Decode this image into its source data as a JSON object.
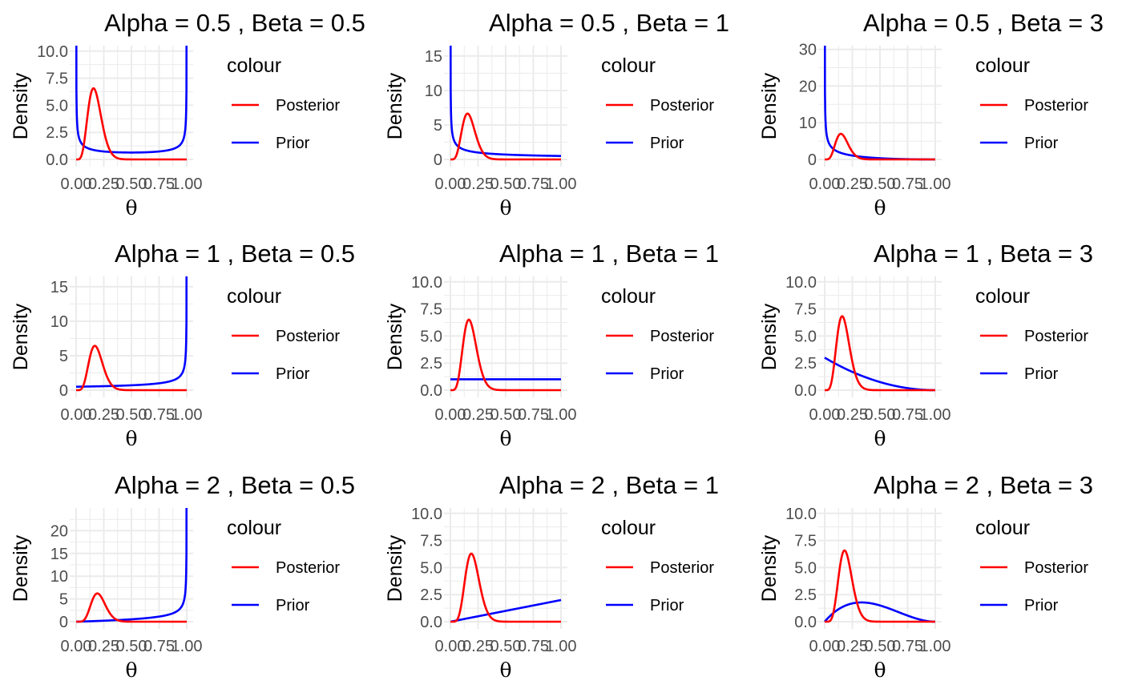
{
  "colors": {
    "posterior": "#FF0000",
    "prior": "#0000FF",
    "grid": "#EBEBEB"
  },
  "chart_data": [
    {
      "type": "line",
      "title": "Alpha = 0.5 , Beta = 0.5",
      "alpha": 0.5,
      "beta": 0.5,
      "xlabel": "θ",
      "ylabel": "Density",
      "xlim": [
        0,
        1
      ],
      "ylim": [
        0,
        10.5
      ],
      "yticks": [
        0,
        2.5,
        5,
        7.5,
        10
      ],
      "ytick_labels": [
        "0.0",
        "2.5",
        "5.0",
        "7.5",
        "10.0"
      ],
      "xticks": [
        0,
        0.25,
        0.5,
        0.75,
        1
      ],
      "xtick_labels": [
        "0.00",
        "0.25",
        "0.50",
        "0.75",
        "1.00"
      ],
      "legend": {
        "title": "colour",
        "position": "right",
        "entries": [
          "Posterior",
          "Prior"
        ]
      },
      "series": [
        {
          "name": "Posterior",
          "color": "#FF0000"
        },
        {
          "name": "Prior",
          "color": "#0000FF"
        }
      ]
    },
    {
      "type": "line",
      "title": "Alpha = 0.5 , Beta = 1",
      "alpha": 0.5,
      "beta": 1,
      "xlabel": "θ",
      "ylabel": "Density",
      "xlim": [
        0,
        1
      ],
      "ylim": [
        0,
        16.5
      ],
      "yticks": [
        0,
        5,
        10,
        15
      ],
      "ytick_labels": [
        "0",
        "5",
        "10",
        "15"
      ],
      "xticks": [
        0,
        0.25,
        0.5,
        0.75,
        1
      ],
      "xtick_labels": [
        "0.00",
        "0.25",
        "0.50",
        "0.75",
        "1.00"
      ],
      "legend": {
        "title": "colour",
        "position": "right",
        "entries": [
          "Posterior",
          "Prior"
        ]
      },
      "series": [
        {
          "name": "Posterior",
          "color": "#FF0000"
        },
        {
          "name": "Prior",
          "color": "#0000FF"
        }
      ]
    },
    {
      "type": "line",
      "title": "Alpha = 0.5 , Beta = 3",
      "alpha": 0.5,
      "beta": 3,
      "xlabel": "θ",
      "ylabel": "Density",
      "xlim": [
        0,
        1
      ],
      "ylim": [
        0,
        31
      ],
      "yticks": [
        0,
        10,
        20,
        30
      ],
      "ytick_labels": [
        "0",
        "10",
        "20",
        "30"
      ],
      "xticks": [
        0,
        0.25,
        0.5,
        0.75,
        1
      ],
      "xtick_labels": [
        "0.00",
        "0.25",
        "0.50",
        "0.75",
        "1.00"
      ],
      "legend": {
        "title": "colour",
        "position": "right",
        "entries": [
          "Posterior",
          "Prior"
        ]
      },
      "series": [
        {
          "name": "Posterior",
          "color": "#FF0000"
        },
        {
          "name": "Prior",
          "color": "#0000FF"
        }
      ]
    },
    {
      "type": "line",
      "title": "Alpha = 1 , Beta = 0.5",
      "alpha": 1,
      "beta": 0.5,
      "xlabel": "θ",
      "ylabel": "Density",
      "xlim": [
        0,
        1
      ],
      "ylim": [
        0,
        16.5
      ],
      "yticks": [
        0,
        5,
        10,
        15
      ],
      "ytick_labels": [
        "0",
        "5",
        "10",
        "15"
      ],
      "xticks": [
        0,
        0.25,
        0.5,
        0.75,
        1
      ],
      "xtick_labels": [
        "0.00",
        "0.25",
        "0.50",
        "0.75",
        "1.00"
      ],
      "legend": {
        "title": "colour",
        "position": "right",
        "entries": [
          "Posterior",
          "Prior"
        ]
      },
      "series": [
        {
          "name": "Posterior",
          "color": "#FF0000"
        },
        {
          "name": "Prior",
          "color": "#0000FF"
        }
      ]
    },
    {
      "type": "line",
      "title": "Alpha = 1 , Beta = 1",
      "alpha": 1,
      "beta": 1,
      "xlabel": "θ",
      "ylabel": "Density",
      "xlim": [
        0,
        1
      ],
      "ylim": [
        0,
        10.5
      ],
      "yticks": [
        0,
        2.5,
        5,
        7.5,
        10
      ],
      "ytick_labels": [
        "0.0",
        "2.5",
        "5.0",
        "7.5",
        "10.0"
      ],
      "xticks": [
        0,
        0.25,
        0.5,
        0.75,
        1
      ],
      "xtick_labels": [
        "0.00",
        "0.25",
        "0.50",
        "0.75",
        "1.00"
      ],
      "legend": {
        "title": "colour",
        "position": "right",
        "entries": [
          "Posterior",
          "Prior"
        ]
      },
      "series": [
        {
          "name": "Posterior",
          "color": "#FF0000"
        },
        {
          "name": "Prior",
          "color": "#0000FF"
        }
      ]
    },
    {
      "type": "line",
      "title": "Alpha = 1 , Beta = 3",
      "alpha": 1,
      "beta": 3,
      "xlabel": "θ",
      "ylabel": "Density",
      "xlim": [
        0,
        1
      ],
      "ylim": [
        0,
        10.5
      ],
      "yticks": [
        0,
        2.5,
        5,
        7.5,
        10
      ],
      "ytick_labels": [
        "0.0",
        "2.5",
        "5.0",
        "7.5",
        "10.0"
      ],
      "xticks": [
        0,
        0.25,
        0.5,
        0.75,
        1
      ],
      "xtick_labels": [
        "0.00",
        "0.25",
        "0.50",
        "0.75",
        "1.00"
      ],
      "legend": {
        "title": "colour",
        "position": "right",
        "entries": [
          "Posterior",
          "Prior"
        ]
      },
      "series": [
        {
          "name": "Posterior",
          "color": "#FF0000"
        },
        {
          "name": "Prior",
          "color": "#0000FF"
        }
      ]
    },
    {
      "type": "line",
      "title": "Alpha = 2 , Beta = 0.5",
      "alpha": 2,
      "beta": 0.5,
      "xlabel": "θ",
      "ylabel": "Density",
      "xlim": [
        0,
        1
      ],
      "ylim": [
        0,
        25
      ],
      "yticks": [
        0,
        5,
        10,
        15,
        20
      ],
      "ytick_labels": [
        "0",
        "5",
        "10",
        "15",
        "20"
      ],
      "xticks": [
        0,
        0.25,
        0.5,
        0.75,
        1
      ],
      "xtick_labels": [
        "0.00",
        "0.25",
        "0.50",
        "0.75",
        "1.00"
      ],
      "legend": {
        "title": "colour",
        "position": "right",
        "entries": [
          "Posterior",
          "Prior"
        ]
      },
      "series": [
        {
          "name": "Posterior",
          "color": "#FF0000"
        },
        {
          "name": "Prior",
          "color": "#0000FF"
        }
      ]
    },
    {
      "type": "line",
      "title": "Alpha = 2 , Beta = 1",
      "alpha": 2,
      "beta": 1,
      "xlabel": "θ",
      "ylabel": "Density",
      "xlim": [
        0,
        1
      ],
      "ylim": [
        0,
        10.5
      ],
      "yticks": [
        0,
        2.5,
        5,
        7.5,
        10
      ],
      "ytick_labels": [
        "0.0",
        "2.5",
        "5.0",
        "7.5",
        "10.0"
      ],
      "xticks": [
        0,
        0.25,
        0.5,
        0.75,
        1
      ],
      "xtick_labels": [
        "0.00",
        "0.25",
        "0.50",
        "0.75",
        "1.00"
      ],
      "legend": {
        "title": "colour",
        "position": "right",
        "entries": [
          "Posterior",
          "Prior"
        ]
      },
      "series": [
        {
          "name": "Posterior",
          "color": "#FF0000"
        },
        {
          "name": "Prior",
          "color": "#0000FF"
        }
      ]
    },
    {
      "type": "line",
      "title": "Alpha = 2 , Beta = 3",
      "alpha": 2,
      "beta": 3,
      "xlabel": "θ",
      "ylabel": "Density",
      "xlim": [
        0,
        1
      ],
      "ylim": [
        0,
        10.5
      ],
      "yticks": [
        0,
        2.5,
        5,
        7.5,
        10
      ],
      "ytick_labels": [
        "0.0",
        "2.5",
        "5.0",
        "7.5",
        "10.0"
      ],
      "xticks": [
        0,
        0.25,
        0.5,
        0.75,
        1
      ],
      "xtick_labels": [
        "0.00",
        "0.25",
        "0.50",
        "0.75",
        "1.00"
      ],
      "legend": {
        "title": "colour",
        "position": "right",
        "entries": [
          "Posterior",
          "Prior"
        ]
      },
      "series": [
        {
          "name": "Posterior",
          "color": "#FF0000"
        },
        {
          "name": "Prior",
          "color": "#0000FF"
        }
      ]
    }
  ]
}
